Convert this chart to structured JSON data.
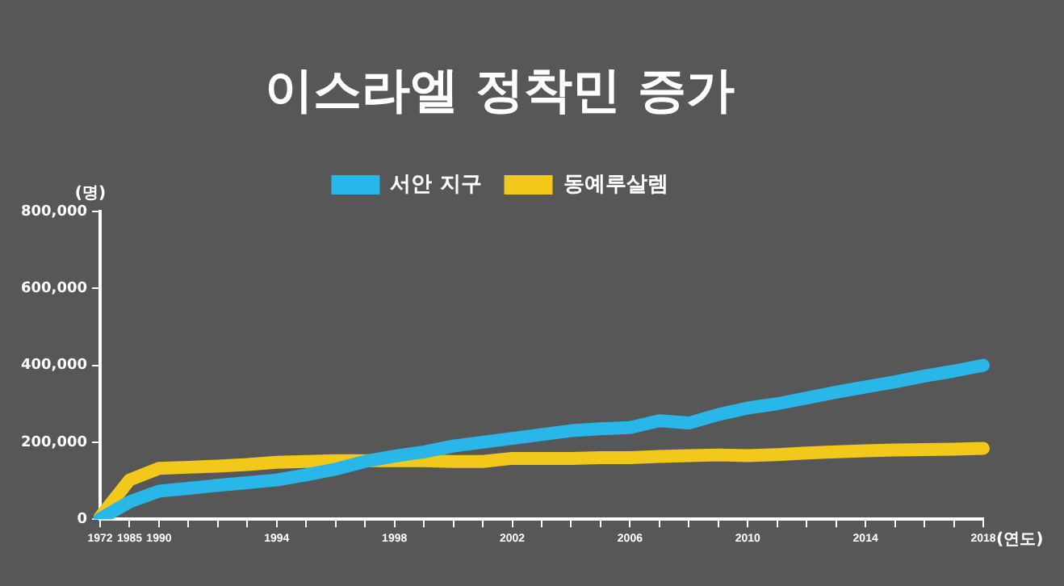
{
  "chart_data": {
    "type": "line",
    "title": "이스라엘 정착민 증가",
    "xlabel": "(연도)",
    "ylabel": "(명)",
    "categories": [
      "1972",
      "1985",
      "1990",
      null,
      null,
      null,
      "1994",
      null,
      null,
      null,
      "1998",
      null,
      null,
      null,
      "2002",
      null,
      null,
      null,
      "2006",
      null,
      null,
      null,
      "2010",
      null,
      null,
      null,
      "2014",
      null,
      null,
      null,
      "2018"
    ],
    "series": [
      {
        "name": "서안 지구",
        "color": "#29b6e8",
        "values": [
          1000,
          45000,
          73000,
          80000,
          88000,
          95000,
          102000,
          115000,
          130000,
          150000,
          164000,
          175000,
          190000,
          200000,
          210000,
          220000,
          230000,
          235000,
          238000,
          256000,
          250000,
          272000,
          289000,
          300000,
          315000,
          330000,
          344000,
          357000,
          372000,
          385000,
          400000
        ]
      },
      {
        "name": "동예루살렘",
        "color": "#f2c81a",
        "values": [
          5000,
          102000,
          132000,
          135000,
          138000,
          142000,
          148000,
          150000,
          152000,
          152000,
          152000,
          152000,
          150000,
          150000,
          158000,
          158000,
          158000,
          160000,
          160000,
          163000,
          165000,
          167000,
          165000,
          168000,
          172000,
          175000,
          178000,
          180000,
          181000,
          182000,
          184000
        ]
      }
    ],
    "ylim": [
      0,
      800000
    ],
    "yticks": [
      0,
      {
        "value": 200000,
        "label": "200,000"
      },
      {
        "value": 400000,
        "label": "400,000"
      },
      {
        "value": 600000,
        "label": "600,000"
      },
      {
        "value": 800000,
        "label": "800,000"
      }
    ],
    "grid": false,
    "legend": "top",
    "marker": "none",
    "line_style": "solid"
  }
}
